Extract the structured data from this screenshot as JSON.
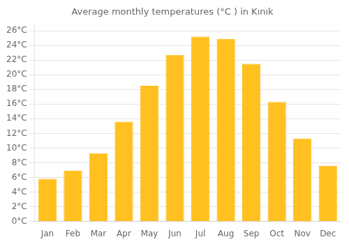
{
  "chart_data": {
    "type": "bar",
    "title": "Average monthly temperatures (°C ) in Kınık",
    "categories": [
      "Jan",
      "Feb",
      "Mar",
      "Apr",
      "May",
      "Jun",
      "Jul",
      "Aug",
      "Sep",
      "Oct",
      "Nov",
      "Dec"
    ],
    "values": [
      5.8,
      6.9,
      9.3,
      13.6,
      18.5,
      22.7,
      25.2,
      24.9,
      21.5,
      16.3,
      11.3,
      7.6
    ],
    "color": "#FFC020",
    "ylim": [
      0,
      27
    ],
    "yticks": [
      {
        "value": 0,
        "label": "0°C"
      },
      {
        "value": 2,
        "label": "2°C"
      },
      {
        "value": 4,
        "label": "4°C"
      },
      {
        "value": 6,
        "label": "6°C"
      },
      {
        "value": 8,
        "label": "8°C"
      },
      {
        "value": 10,
        "label": "10°C"
      },
      {
        "value": 12,
        "label": "12°C"
      },
      {
        "value": 14,
        "label": "14°C"
      },
      {
        "value": 16,
        "label": "16°C"
      },
      {
        "value": 18,
        "label": "18°C"
      },
      {
        "value": 20,
        "label": "20°C"
      },
      {
        "value": 22,
        "label": "22°C"
      },
      {
        "value": 24,
        "label": "24°C"
      },
      {
        "value": 26,
        "label": "26°C"
      }
    ],
    "grid": true
  }
}
